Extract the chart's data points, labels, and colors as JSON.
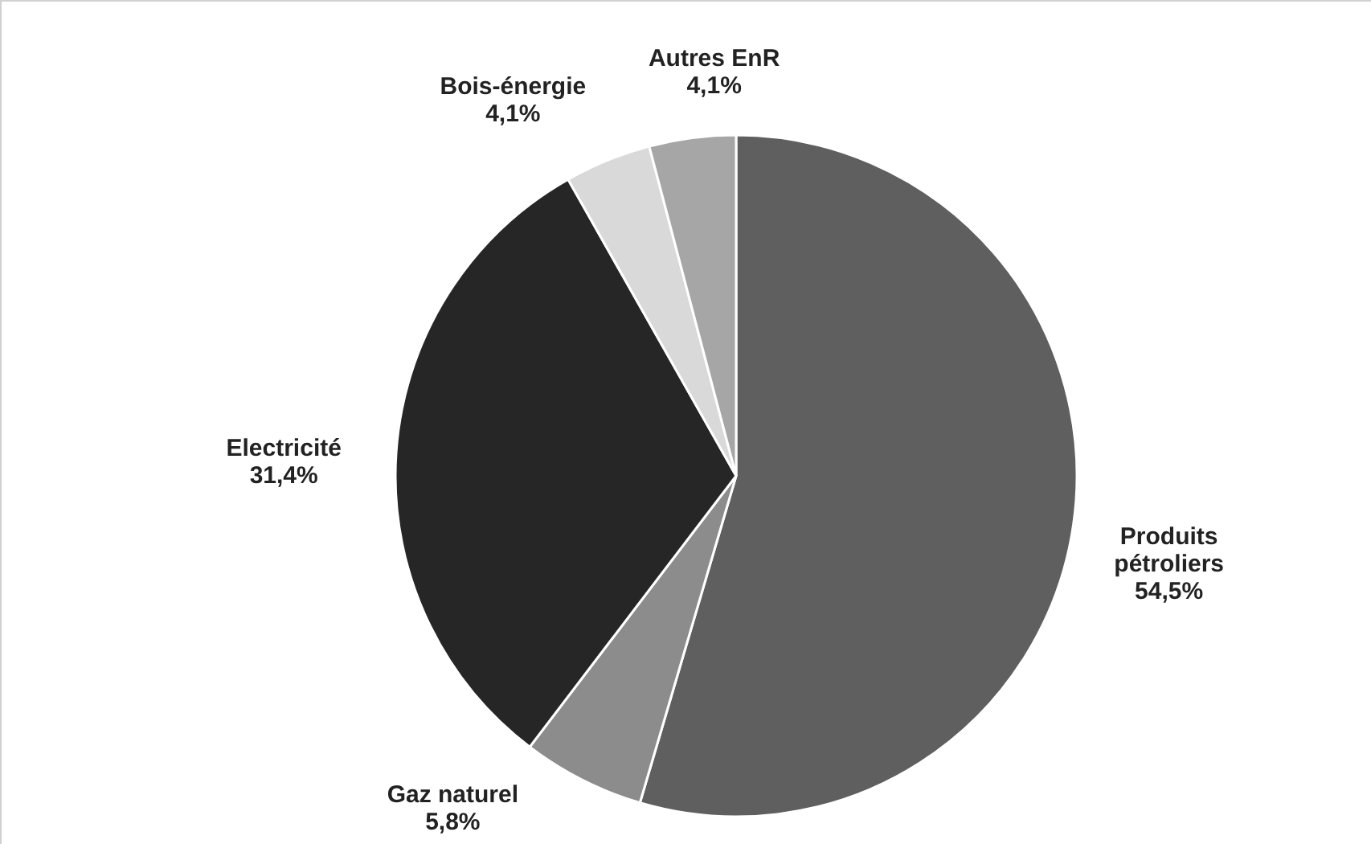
{
  "chart_data": {
    "type": "pie",
    "categories": [
      "Produits pétroliers",
      "Gaz naturel",
      "Electricité",
      "Bois-énergie",
      "Autres EnR"
    ],
    "values": [
      54.5,
      5.8,
      31.4,
      4.1,
      4.1
    ],
    "colors": [
      "#5f5f5f",
      "#8c8c8c",
      "#262626",
      "#d9d9d9",
      "#a6a6a6"
    ],
    "value_labels": [
      "54,5%",
      "5,8%",
      "31,4%",
      "4,1%",
      "4,1%"
    ]
  }
}
